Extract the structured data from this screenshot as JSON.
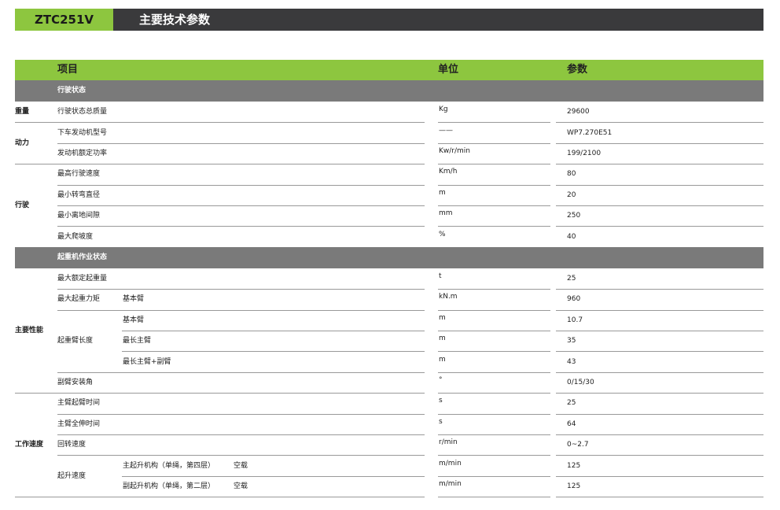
{
  "header": {
    "model": "ZTC251V",
    "title": "主要技术参数"
  },
  "table": {
    "columns": [
      "项目",
      "单位",
      "参数"
    ],
    "sections": [
      {
        "title": "行驶状态",
        "groups": [
          {
            "category": "重量",
            "rows": [
              {
                "item": "行驶状态总质量",
                "unit": "Kg",
                "value": "29600"
              }
            ]
          },
          {
            "category": "动力",
            "rows": [
              {
                "item": "下车发动机型号",
                "unit": "——",
                "value": "WP7.270E51"
              },
              {
                "item": "发动机额定功率",
                "unit": "Kw/r/min",
                "value": "199/2100"
              }
            ]
          },
          {
            "category": "行驶",
            "rows": [
              {
                "item": "最高行驶速度",
                "unit": "Km/h",
                "value": "80"
              },
              {
                "item": "最小转弯直径",
                "unit": "m",
                "value": "20"
              },
              {
                "item": "最小离地间隙",
                "unit": "mm",
                "value": "250"
              },
              {
                "item": "最大爬坡度",
                "unit": "%",
                "value": "40"
              }
            ]
          }
        ]
      },
      {
        "title": "起重机作业状态",
        "groups": [
          {
            "category": "主要性能",
            "rows": [
              {
                "item": "最大额定起重量",
                "unit": "t",
                "value": "25"
              },
              {
                "item": "最大起重力矩",
                "sub": "基本臂",
                "unit": "kN.m",
                "value": "960"
              },
              {
                "item": "起重臂长度",
                "rows": [
                  {
                    "sub": "基本臂",
                    "unit": "m",
                    "value": "10.7"
                  },
                  {
                    "sub": "最长主臂",
                    "unit": "m",
                    "value": "35"
                  },
                  {
                    "sub": "最长主臂+副臂",
                    "unit": "m",
                    "value": "43"
                  }
                ]
              },
              {
                "item": "副臂安装角",
                "unit": "°",
                "value": "0/15/30"
              }
            ]
          },
          {
            "category": "工作速度",
            "rows": [
              {
                "item": "主臂起臂时间",
                "unit": "s",
                "value": "25"
              },
              {
                "item": "主臂全伸时间",
                "unit": "s",
                "value": "64"
              },
              {
                "item": "回转速度",
                "unit": "r/min",
                "value": "0~2.7"
              },
              {
                "item": "起升速度",
                "rows": [
                  {
                    "sub": "主起升机构（单绳，第四层）",
                    "note": "空载",
                    "unit": "m/min",
                    "value": "125"
                  },
                  {
                    "sub": "副起升机构（单绳，第二层）",
                    "note": "空载",
                    "unit": "m/min",
                    "value": "125"
                  }
                ]
              }
            ]
          }
        ]
      }
    ]
  }
}
